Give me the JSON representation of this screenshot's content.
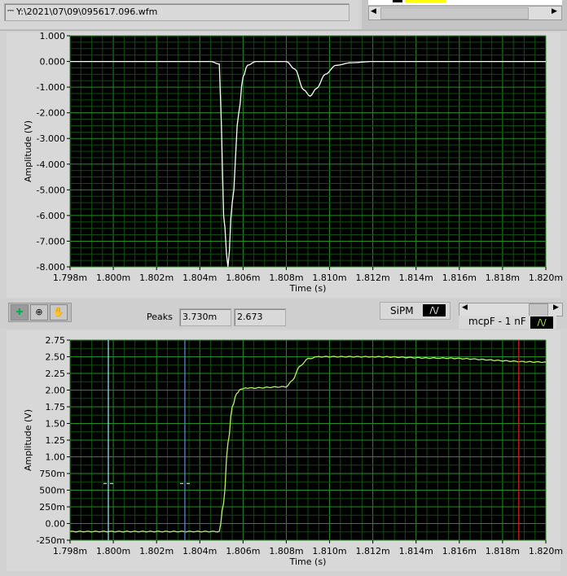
{
  "file_path": {
    "icon": "path-icon",
    "value": "Y:\\2021\\07\\09\\095617.096.wfm"
  },
  "toolbar": {
    "tools": [
      "cursor-move-icon",
      "zoom-icon",
      "pan-hand-icon"
    ],
    "peaks_label": "Peaks",
    "peaks_x": "3.730m",
    "peaks_y": "2.673",
    "legend_top": "SiPM",
    "legend_bottom": "mcpF - 1 nF"
  },
  "colors": {
    "plot_bg": "#000000",
    "grid_major": "#1f8f1f",
    "grid_minor": "#0d4d0d",
    "trace_top": "#ffffff",
    "trace_bottom": "#b8f060",
    "cursor1": "#a0f0f0",
    "cursor2": "#5a8ee0",
    "cursor3": "#e02020"
  },
  "chart_data": [
    {
      "type": "line",
      "series_label": "SiPM",
      "xlabel": "Time (s)",
      "ylabel": "Amplitude (V)",
      "xlim": [
        0.001798,
        0.00182
      ],
      "ylim": [
        -8,
        1
      ],
      "grid": true,
      "xticks": [
        "1.798m",
        "1.800m",
        "1.802m",
        "1.804m",
        "1.806m",
        "1.808m",
        "1.810m",
        "1.812m",
        "1.814m",
        "1.816m",
        "1.818m",
        "1.820m"
      ],
      "yticks": [
        "1.000",
        "0.000",
        "-1.000",
        "-2.000",
        "-3.000",
        "-4.000",
        "-5.000",
        "-6.000",
        "-7.000",
        "-8.000"
      ],
      "x": [
        1.798,
        1.8045,
        1.8049,
        1.805,
        1.8051,
        1.8053,
        1.8055,
        1.8058,
        1.806,
        1.8062,
        1.8066,
        1.808,
        1.8084,
        1.8088,
        1.8091,
        1.8094,
        1.8098,
        1.8103,
        1.811,
        1.812,
        1.82
      ],
      "y": [
        0,
        0,
        -0.1,
        -2.5,
        -6.0,
        -8.0,
        -5.5,
        -2.0,
        -0.6,
        -0.15,
        0,
        0,
        -0.3,
        -1.1,
        -1.35,
        -1.05,
        -0.5,
        -0.15,
        -0.05,
        0,
        0
      ]
    },
    {
      "type": "line",
      "series_label": "mcpF - 1 nF",
      "xlabel": "Time (s)",
      "ylabel": "Amplitude (V)",
      "xlim": [
        0.001798,
        0.00182
      ],
      "ylim": [
        -0.25,
        2.75
      ],
      "grid": true,
      "xticks": [
        "1.798m",
        "1.800m",
        "1.802m",
        "1.804m",
        "1.806m",
        "1.808m",
        "1.810m",
        "1.812m",
        "1.814m",
        "1.816m",
        "1.818m",
        "1.820m"
      ],
      "yticks": [
        "2.75",
        "2.50",
        "2.25",
        "2.00",
        "1.75",
        "1.50",
        "1.25",
        "1.00",
        "750m",
        "500m",
        "250m",
        "0.00",
        "-250m"
      ],
      "x": [
        1.798,
        1.8049,
        1.8051,
        1.8053,
        1.8055,
        1.8057,
        1.8059,
        1.8062,
        1.808,
        1.8083,
        1.8086,
        1.809,
        1.8095,
        1.812,
        1.815,
        1.82
      ],
      "y": [
        -0.12,
        -0.12,
        0.3,
        1.2,
        1.75,
        1.95,
        2.02,
        2.03,
        2.05,
        2.15,
        2.35,
        2.47,
        2.5,
        2.5,
        2.48,
        2.42
      ],
      "cursors_ms": [
        1.79977,
        1.80331,
        1.81875
      ],
      "cursor_level": 0.6
    }
  ]
}
